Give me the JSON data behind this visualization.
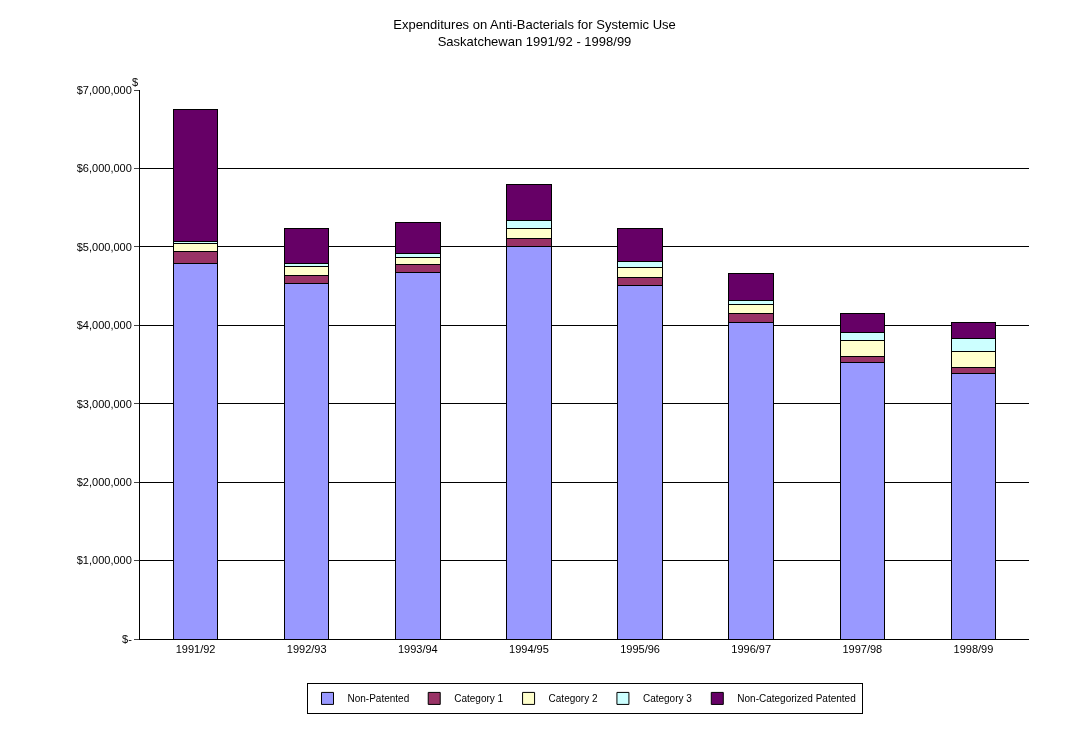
{
  "chart_data": {
    "type": "bar",
    "title": "Expenditures on Anti-Bacterials for Systemic Use",
    "subtitle": "Saskatchewan 1991/92 - 1998/99",
    "ylabel": "$",
    "categories": [
      "1991/92",
      "1992/93",
      "1993/94",
      "1994/95",
      "1995/96",
      "1996/97",
      "1997/98",
      "1998/99"
    ],
    "stacked": true,
    "grid": "y",
    "legend": "bottom",
    "ylim": [
      0,
      7000000
    ],
    "yticks": [
      {
        "value": 0,
        "label": "$-"
      },
      {
        "value": 1000000,
        "label": "$1,000,000"
      },
      {
        "value": 2000000,
        "label": "$2,000,000"
      },
      {
        "value": 3000000,
        "label": "$3,000,000"
      },
      {
        "value": 4000000,
        "label": "$4,000,000"
      },
      {
        "value": 5000000,
        "label": "$5,000,000"
      },
      {
        "value": 6000000,
        "label": "$6,000,000"
      },
      {
        "value": 7000000,
        "label": "$7,000,000"
      }
    ],
    "series": [
      {
        "name": "Non-Patented",
        "color": "#9999ff",
        "values": [
          4790000,
          4530000,
          4670000,
          5010000,
          4510000,
          4040000,
          3520000,
          3380000
        ]
      },
      {
        "name": "Category 1",
        "color": "#993366",
        "values": [
          150000,
          100000,
          110000,
          100000,
          100000,
          110000,
          80000,
          80000
        ]
      },
      {
        "name": "Category 2",
        "color": "#ffffcc",
        "values": [
          100000,
          120000,
          80000,
          120000,
          130000,
          110000,
          200000,
          200000
        ]
      },
      {
        "name": "Category 3",
        "color": "#ccffff",
        "values": [
          30000,
          40000,
          60000,
          100000,
          70000,
          60000,
          110000,
          170000
        ]
      },
      {
        "name": "Non-Categorized Patented",
        "color": "#660066",
        "values": [
          1680000,
          450000,
          390000,
          460000,
          430000,
          340000,
          240000,
          210000
        ]
      }
    ]
  }
}
